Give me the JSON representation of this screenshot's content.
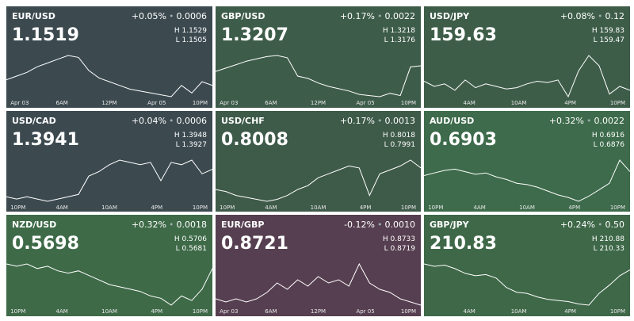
{
  "tiles": [
    {
      "pair": "EUR/USD",
      "change": "+0.05%",
      "delta": "0.0006",
      "price": "1.1519",
      "high": "1.1529",
      "low": "1.1505",
      "color": "#3c4a50",
      "xlabels": [
        "Apr 03",
        "6AM",
        "12PM",
        "Apr 05",
        "10PM"
      ],
      "line": [
        1.1515,
        1.1517,
        1.1519,
        1.1522,
        1.1524,
        1.1526,
        1.1528,
        1.1527,
        1.152,
        1.1516,
        1.1514,
        1.1512,
        1.151,
        1.1509,
        1.1508,
        1.1507,
        1.1506,
        1.1512,
        1.1508,
        1.1514,
        1.1512
      ]
    },
    {
      "pair": "GBP/USD",
      "change": "+0.17%",
      "delta": "0.0022",
      "price": "1.3207",
      "high": "1.3218",
      "low": "1.3176",
      "color": "#3e5c4a",
      "xlabels": [
        "Apr 03",
        "6AM",
        "12PM",
        "Apr 05",
        "10PM"
      ],
      "line": [
        1.32,
        1.3203,
        1.3206,
        1.3209,
        1.3211,
        1.3213,
        1.3214,
        1.3212,
        1.3196,
        1.3194,
        1.319,
        1.3187,
        1.3185,
        1.3183,
        1.318,
        1.3179,
        1.3178,
        1.3181,
        1.3179,
        1.3204,
        1.3205
      ]
    },
    {
      "pair": "USD/JPY",
      "change": "+0.08%",
      "delta": "0.12",
      "price": "159.63",
      "high": "159.83",
      "low": "159.47",
      "color": "#3e5d49",
      "xlabels": [
        "4AM",
        "10AM",
        "4PM",
        "10PM"
      ],
      "line": [
        159.62,
        159.58,
        159.6,
        159.55,
        159.63,
        159.57,
        159.6,
        159.58,
        159.56,
        159.57,
        159.6,
        159.62,
        159.61,
        159.63,
        159.5,
        159.7,
        159.82,
        159.74,
        159.52,
        159.58,
        159.55
      ]
    },
    {
      "pair": "USD/CAD",
      "change": "+0.04%",
      "delta": "0.0006",
      "price": "1.3941",
      "high": "1.3948",
      "low": "1.3927",
      "color": "#3c4a50",
      "xlabels": [
        "10PM",
        "4AM",
        "10AM",
        "4PM",
        "10PM"
      ],
      "line": [
        1.3929,
        1.3928,
        1.3929,
        1.3928,
        1.3927,
        1.3928,
        1.3929,
        1.393,
        1.3938,
        1.394,
        1.3943,
        1.3945,
        1.3944,
        1.3943,
        1.3944,
        1.3936,
        1.3944,
        1.3943,
        1.3945,
        1.3939,
        1.3941
      ]
    },
    {
      "pair": "USD/CHF",
      "change": "+0.17%",
      "delta": "0.0013",
      "price": "0.8008",
      "high": "0.8018",
      "low": "0.7991",
      "color": "#3e5a49",
      "xlabels": [
        "10PM",
        "4AM",
        "10AM",
        "4PM",
        "10PM"
      ],
      "line": [
        0.7998,
        0.7997,
        0.7995,
        0.7994,
        0.7993,
        0.7992,
        0.7993,
        0.7995,
        0.7998,
        0.8,
        0.8004,
        0.8006,
        0.8008,
        0.801,
        0.8009,
        0.7995,
        0.8006,
        0.8008,
        0.801,
        0.8013,
        0.8009
      ]
    },
    {
      "pair": "AUD/USD",
      "change": "+0.32%",
      "delta": "0.0022",
      "price": "0.6903",
      "high": "0.6916",
      "low": "0.6876",
      "color": "#3d6b4b",
      "xlabels": [
        "10PM",
        "4AM",
        "10AM",
        "4PM",
        "10PM"
      ],
      "line": [
        0.69,
        0.6902,
        0.6904,
        0.6905,
        0.6903,
        0.6901,
        0.6902,
        0.6899,
        0.6897,
        0.6894,
        0.6893,
        0.6891,
        0.6888,
        0.6885,
        0.6883,
        0.688,
        0.6884,
        0.6889,
        0.6894,
        0.6912,
        0.6903
      ]
    },
    {
      "pair": "NZD/USD",
      "change": "+0.32%",
      "delta": "0.0018",
      "price": "0.5698",
      "high": "0.5706",
      "low": "0.5681",
      "color": "#3e6a48",
      "xlabels": [
        "10PM",
        "4AM",
        "10AM",
        "4PM",
        "10PM"
      ],
      "line": [
        0.57,
        0.5699,
        0.57,
        0.5698,
        0.5699,
        0.5697,
        0.5696,
        0.5697,
        0.5695,
        0.5693,
        0.5691,
        0.569,
        0.5689,
        0.5688,
        0.5686,
        0.5685,
        0.5682,
        0.5686,
        0.5684,
        0.5689,
        0.5698
      ]
    },
    {
      "pair": "EUR/GBP",
      "change": "-0.12%",
      "delta": "0.0010",
      "price": "0.8721",
      "high": "0.8733",
      "low": "0.8719",
      "color": "#563f50",
      "xlabels": [
        "Apr 03",
        "6AM",
        "12PM",
        "Apr 05",
        "10PM"
      ],
      "line": [
        0.8722,
        0.8721,
        0.8722,
        0.8721,
        0.8722,
        0.8724,
        0.8727,
        0.8725,
        0.8728,
        0.8726,
        0.8729,
        0.8727,
        0.8728,
        0.8726,
        0.8733,
        0.8727,
        0.8725,
        0.8724,
        0.8722,
        0.8721,
        0.872
      ]
    },
    {
      "pair": "GBP/JPY",
      "change": "+0.24%",
      "delta": "0.50",
      "price": "210.83",
      "high": "210.88",
      "low": "210.33",
      "color": "#3e6848",
      "xlabels": [
        "4AM",
        "10AM",
        "4PM",
        "10PM"
      ],
      "line": [
        210.8,
        210.78,
        210.79,
        210.76,
        210.72,
        210.7,
        210.71,
        210.68,
        210.6,
        210.56,
        210.55,
        210.52,
        210.5,
        210.49,
        210.48,
        210.46,
        210.45,
        210.55,
        210.62,
        210.7,
        210.75
      ]
    }
  ]
}
